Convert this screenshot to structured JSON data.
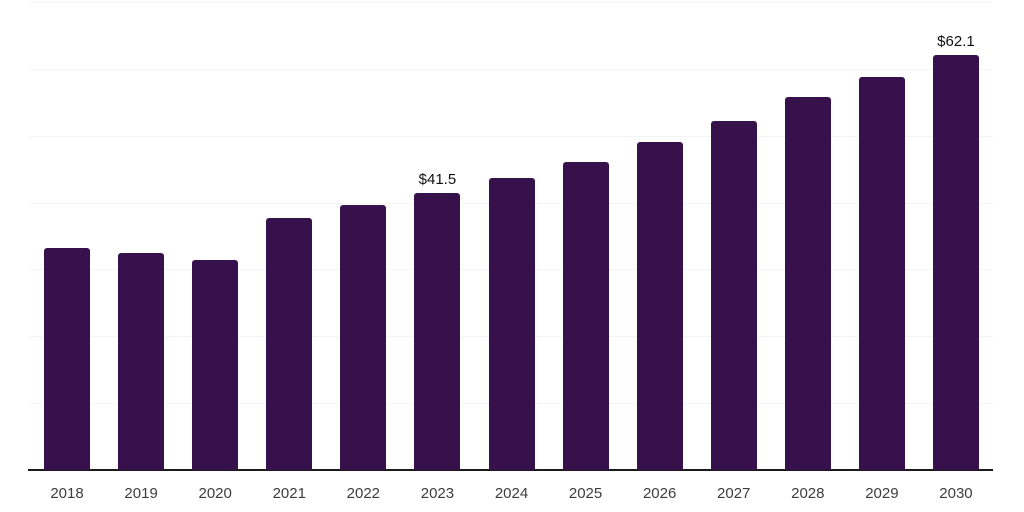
{
  "chart_data": {
    "type": "bar",
    "title": "",
    "xlabel": "",
    "ylabel": "",
    "categories": [
      "2018",
      "2019",
      "2020",
      "2021",
      "2022",
      "2023",
      "2024",
      "2025",
      "2026",
      "2027",
      "2028",
      "2029",
      "2030"
    ],
    "values": [
      33.2,
      32.4,
      31.4,
      37.7,
      39.7,
      41.5,
      43.7,
      46.0,
      49.1,
      52.2,
      55.8,
      58.8,
      62.1
    ],
    "value_labels": {
      "2023": "$41.5",
      "2030": "$62.1"
    },
    "ylim": [
      0,
      70
    ],
    "gridline_step": 10,
    "grid": "on",
    "legend_position": "none",
    "colors": {
      "bar": "#36114B",
      "gridline": "#f4f4f4",
      "axis_line": "#1a1a1a",
      "tick_label": "#3d3d3d",
      "data_label": "#111111",
      "background": "#ffffff"
    }
  }
}
